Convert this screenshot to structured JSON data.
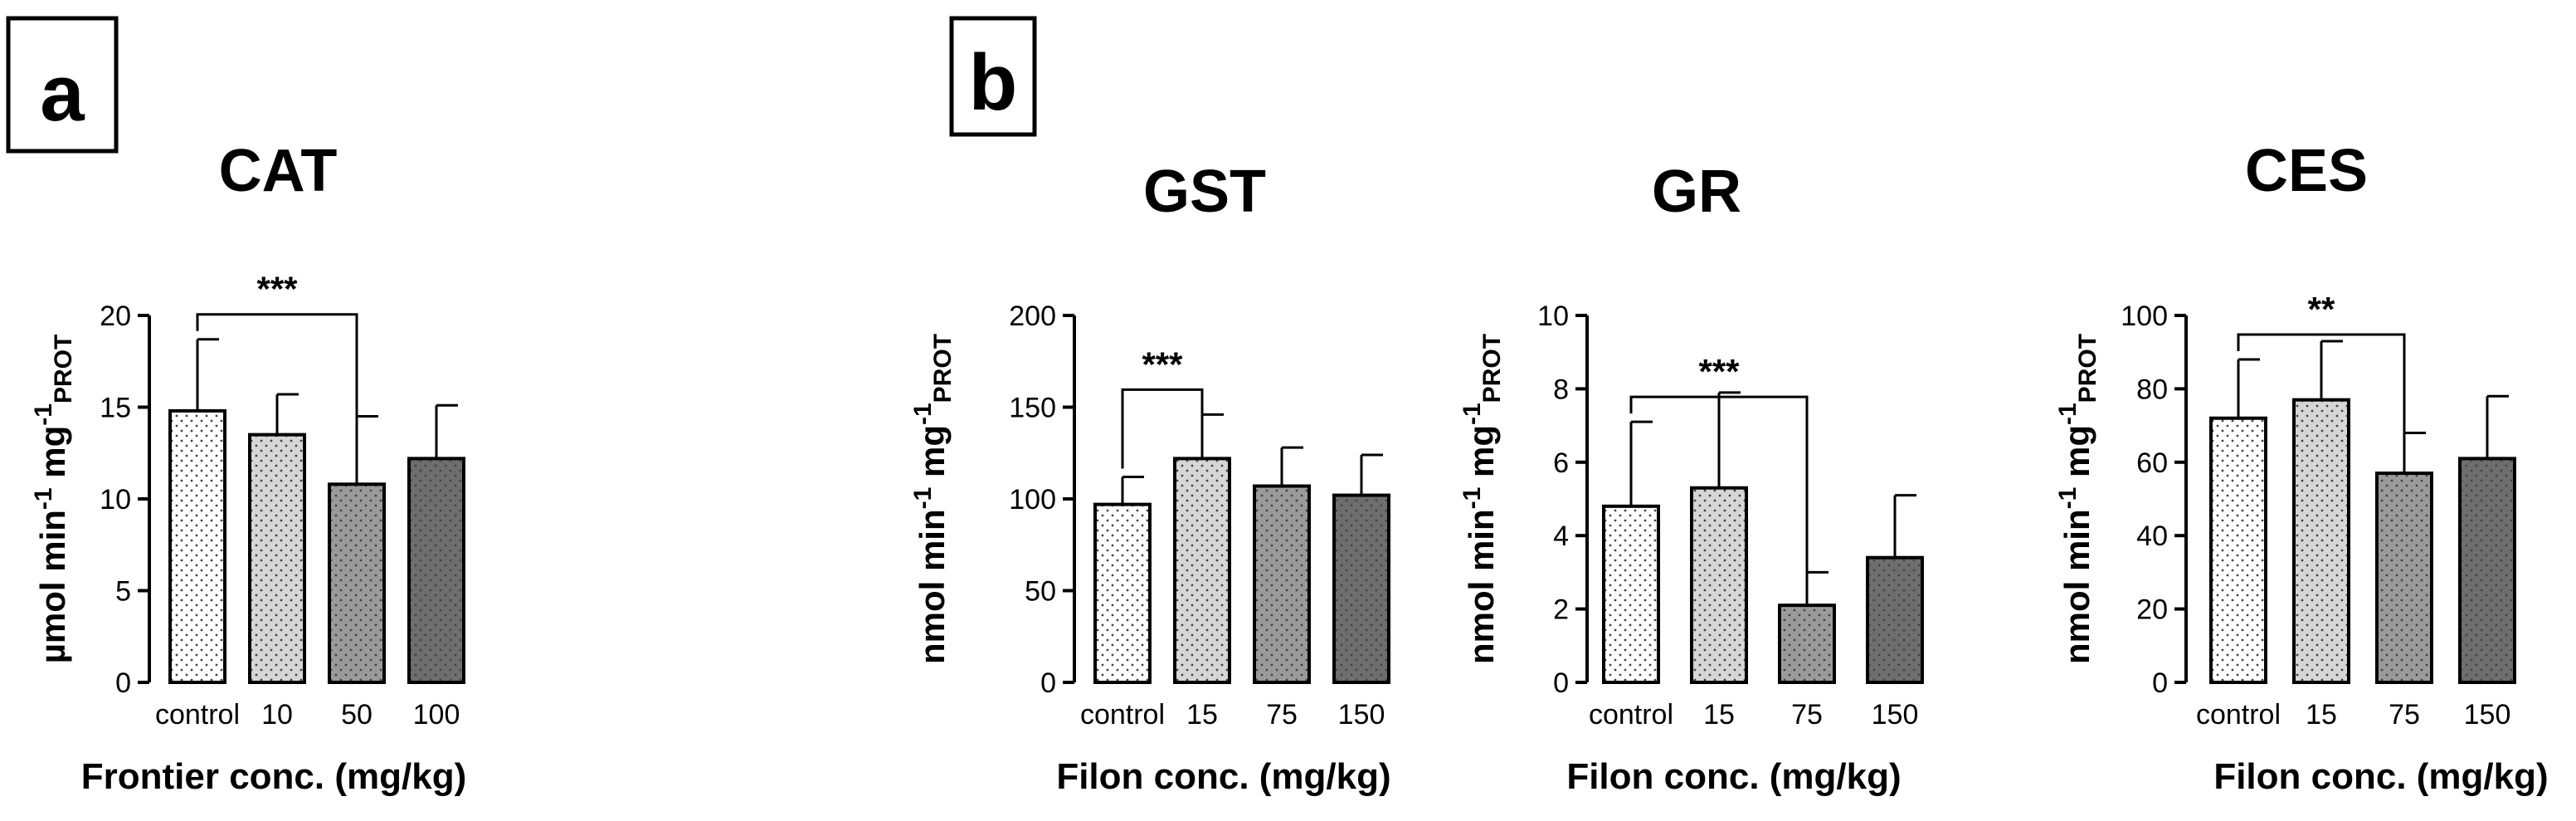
{
  "panel_labels": [
    "a",
    "b"
  ],
  "chart_data": [
    {
      "type": "bar",
      "title": "CAT",
      "xlabel": "Frontier conc. (mg/kg)",
      "ylabel_main": "µmol min",
      "ylabel_unit2": " mg",
      "ylabel_sup": "-1",
      "ylabel_sub": "PROT",
      "categories": [
        "control",
        "10",
        "50",
        "100"
      ],
      "values": [
        14.8,
        13.5,
        10.8,
        12.2
      ],
      "errors": [
        3.9,
        2.2,
        3.7,
        2.9
      ],
      "ylim": [
        0,
        20
      ],
      "yticks": [
        "0",
        "5",
        "10",
        "15",
        "20"
      ],
      "colors": [
        "#ffffff",
        "#d6d6d6",
        "#9a9a9a",
        "#6e6e6e"
      ],
      "significance": [
        {
          "from": 0,
          "to": 2,
          "label": "***"
        }
      ]
    },
    {
      "type": "bar",
      "title": "GST",
      "xlabel": "Filon conc. (mg/kg)",
      "ylabel_main": "nmol min",
      "ylabel_unit2": " mg",
      "ylabel_sup": "-1",
      "ylabel_sub": "PROT",
      "categories": [
        "control",
        "15",
        "75",
        "150"
      ],
      "values": [
        97,
        122,
        107,
        102
      ],
      "errors": [
        15,
        24,
        21,
        22
      ],
      "ylim": [
        0,
        200
      ],
      "yticks": [
        "0",
        "50",
        "100",
        "150",
        "200"
      ],
      "colors": [
        "#ffffff",
        "#d6d6d6",
        "#9a9a9a",
        "#6e6e6e"
      ],
      "significance": [
        {
          "from": 0,
          "to": 1,
          "label": "***"
        }
      ]
    },
    {
      "type": "bar",
      "title": "GR",
      "xlabel": "Filon conc. (mg/kg)",
      "ylabel_main": "nmol min",
      "ylabel_unit2": " mg",
      "ylabel_sup": "-1",
      "ylabel_sub": "PROT",
      "categories": [
        "control",
        "15",
        "75",
        "150"
      ],
      "values": [
        4.8,
        5.3,
        2.1,
        3.4
      ],
      "errors": [
        2.3,
        2.6,
        0.9,
        1.7
      ],
      "ylim": [
        0,
        10
      ],
      "yticks": [
        "0",
        "2",
        "4",
        "6",
        "8",
        "10"
      ],
      "colors": [
        "#ffffff",
        "#d6d6d6",
        "#9a9a9a",
        "#6e6e6e"
      ],
      "significance": [
        {
          "from": 0,
          "to": 2,
          "label": "***"
        }
      ]
    },
    {
      "type": "bar",
      "title": "CES",
      "xlabel": "Filon conc. (mg/kg)",
      "ylabel_main": "nmol min",
      "ylabel_unit2": " mg",
      "ylabel_sup": "-1",
      "ylabel_sub": "PROT",
      "categories": [
        "control",
        "15",
        "75",
        "150"
      ],
      "values": [
        72,
        77,
        57,
        61
      ],
      "errors": [
        16,
        16,
        11,
        17
      ],
      "ylim": [
        0,
        100
      ],
      "yticks": [
        "0",
        "20",
        "40",
        "60",
        "80",
        "100"
      ],
      "colors": [
        "#ffffff",
        "#d6d6d6",
        "#9a9a9a",
        "#6e6e6e"
      ],
      "significance": [
        {
          "from": 0,
          "to": 2,
          "label": "**"
        }
      ]
    }
  ]
}
